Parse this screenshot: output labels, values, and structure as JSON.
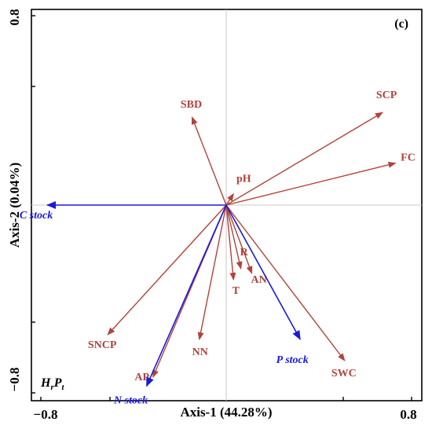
{
  "chart_data": {
    "type": "biplot",
    "panel_label": "(c)",
    "treatment": {
      "main": "H",
      "sub1": "r",
      "mid": "P",
      "sub2": "t"
    },
    "xlabel": "Axis-1 (44.28%)",
    "ylabel": "Axis-2 (0.04%)",
    "xlim": [
      -0.85,
      0.85
    ],
    "ylim": [
      -0.85,
      0.85
    ],
    "xticks": [
      "−0.8",
      "0.8"
    ],
    "yticks": [
      "0.8",
      "−0.8"
    ],
    "colors": {
      "environment": "#b0433a",
      "stock": "#1a1adb",
      "grid": "#c8c8c8"
    },
    "vectors": [
      {
        "name": "SCP",
        "group": "environment",
        "x": 0.64,
        "y": 0.393
      },
      {
        "name": "FC",
        "group": "environment",
        "x": 0.693,
        "y": 0.178
      },
      {
        "name": "SBD",
        "group": "environment",
        "x": -0.14,
        "y": 0.373
      },
      {
        "name": "pH",
        "group": "environment",
        "x": 0.03,
        "y": 0.048
      },
      {
        "name": "R",
        "group": "environment",
        "x": 0.06,
        "y": -0.27
      },
      {
        "name": "AN",
        "group": "environment",
        "x": 0.105,
        "y": -0.29
      },
      {
        "name": "T",
        "group": "environment",
        "x": 0.03,
        "y": -0.317
      },
      {
        "name": "SNCP",
        "group": "environment",
        "x": -0.485,
        "y": -0.55
      },
      {
        "name": "NN",
        "group": "environment",
        "x": -0.11,
        "y": -0.57
      },
      {
        "name": "AP",
        "group": "environment",
        "x": -0.3,
        "y": -0.73
      },
      {
        "name": "SWC",
        "group": "environment",
        "x": 0.485,
        "y": -0.66
      },
      {
        "name": "C stock",
        "group": "stock",
        "x": -0.733,
        "y": 0.0
      },
      {
        "name": "N stock",
        "group": "stock",
        "x": -0.326,
        "y": -0.768
      },
      {
        "name": "P stock",
        "group": "stock",
        "x": 0.303,
        "y": -0.57
      }
    ]
  }
}
